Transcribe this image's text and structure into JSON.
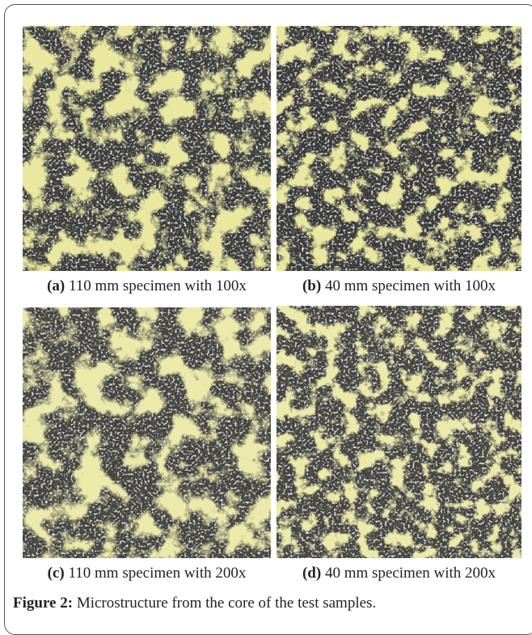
{
  "panels": [
    {
      "label": "(a)",
      "caption": "110 mm specimen with 100x"
    },
    {
      "label": "(b)",
      "caption": "40 mm specimen with 100x"
    },
    {
      "label": "(c)",
      "caption": "110 mm specimen with 200x"
    },
    {
      "label": "(d)",
      "caption": "40 mm specimen with 200x"
    }
  ],
  "figure": {
    "label": "Figure 2:",
    "caption": "Microstructure from the core of the test samples."
  }
}
